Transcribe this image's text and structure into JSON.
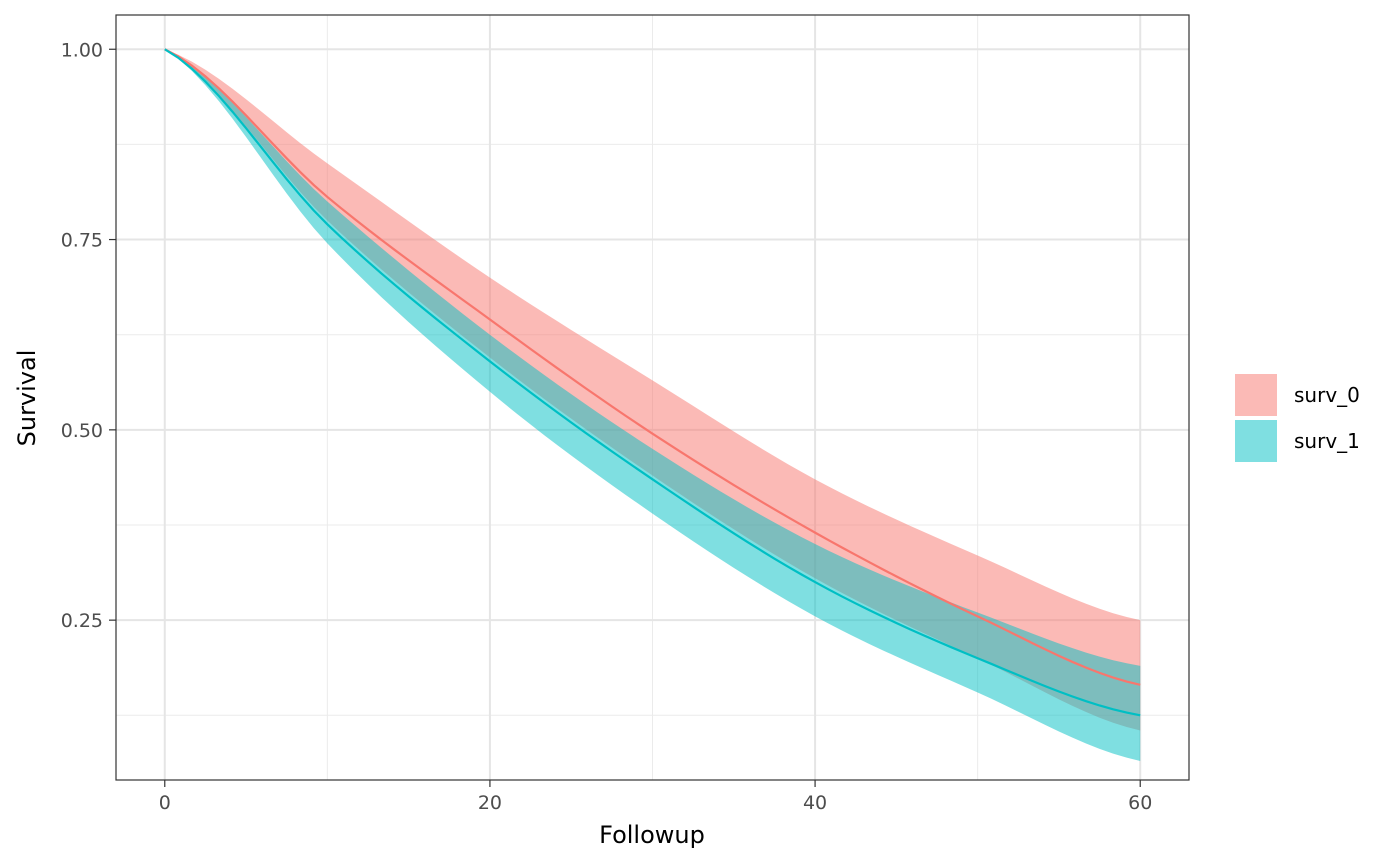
{
  "chart_data": {
    "type": "line",
    "xlabel": "Followup",
    "ylabel": "Survival",
    "xlim": [
      -3,
      63
    ],
    "ylim": [
      0.04,
      1.045
    ],
    "x_ticks": [
      0,
      20,
      40,
      60
    ],
    "x_tick_labels": [
      "0",
      "20",
      "40",
      "60"
    ],
    "y_ticks": [
      0.25,
      0.5,
      0.75,
      1.0
    ],
    "y_tick_labels": [
      "0.25",
      "0.50",
      "0.75",
      "1.00"
    ],
    "x_minor_ticks": [
      10,
      30,
      50
    ],
    "y_minor_ticks": [
      0.125,
      0.375,
      0.625,
      0.875
    ],
    "grid": true,
    "legend_position": "right",
    "x": [
      0,
      10,
      20,
      30,
      40,
      50,
      60
    ],
    "series": [
      {
        "name": "surv_0",
        "color": "#F8766D",
        "fill": "#F8766D",
        "values": [
          1.0,
          0.806,
          0.645,
          0.495,
          0.365,
          0.255,
          0.165
        ],
        "lower": [
          1.0,
          0.775,
          0.595,
          0.44,
          0.305,
          0.2,
          0.105
        ],
        "upper": [
          1.0,
          0.85,
          0.7,
          0.565,
          0.435,
          0.335,
          0.25
        ]
      },
      {
        "name": "surv_1",
        "color": "#00BFC4",
        "fill": "#00BFC4",
        "values": [
          1.0,
          0.77,
          0.59,
          0.435,
          0.3,
          0.2,
          0.125
        ],
        "lower": [
          1.0,
          0.745,
          0.55,
          0.39,
          0.255,
          0.155,
          0.065
        ],
        "upper": [
          1.0,
          0.8,
          0.625,
          0.475,
          0.35,
          0.26,
          0.19
        ]
      }
    ],
    "legend": {
      "entries": [
        "surv_0",
        "surv_1"
      ]
    }
  }
}
